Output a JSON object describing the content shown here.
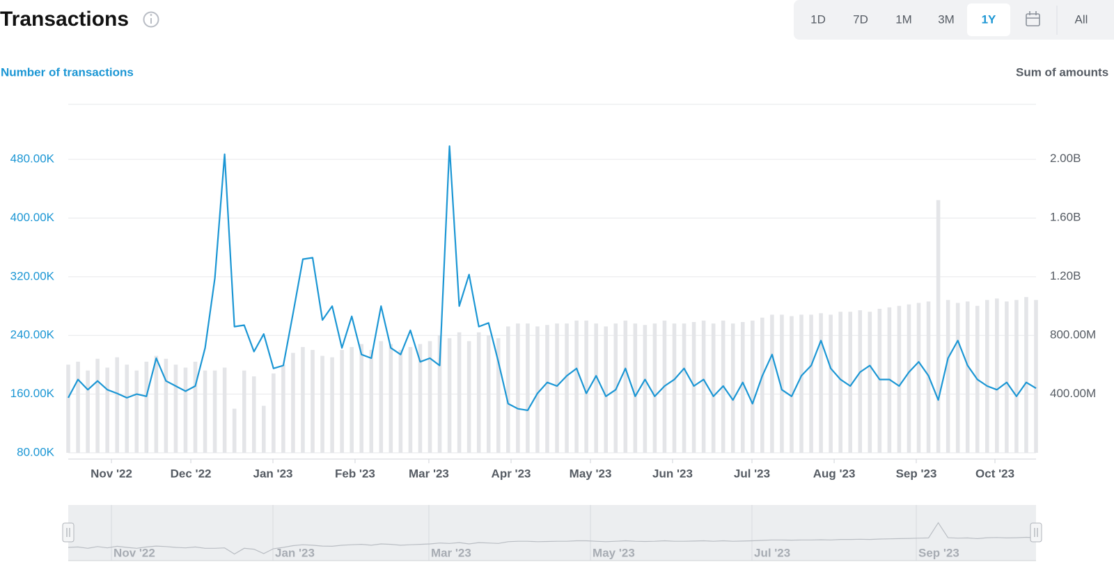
{
  "chart_data": {
    "type": "line",
    "title": "Transactions",
    "y_axis_label": "Number of transactions",
    "y2_axis_label": "Sum of amounts",
    "controls": {
      "ranges": [
        "1D",
        "7D",
        "1M",
        "3M",
        "1Y",
        "All"
      ],
      "selected": 4
    },
    "xlim": [
      0,
      99
    ],
    "xticks": [
      {
        "value": 4.42,
        "label": "Nov '22"
      },
      {
        "value": 12.54,
        "label": "Dec '22"
      },
      {
        "value": 20.94,
        "label": "Jan '23"
      },
      {
        "value": 29.34,
        "label": "Feb '23"
      },
      {
        "value": 36.89,
        "label": "Mar '23"
      },
      {
        "value": 45.3,
        "label": "Apr '23"
      },
      {
        "value": 53.42,
        "label": "May '23"
      },
      {
        "value": 61.82,
        "label": "Jun '23"
      },
      {
        "value": 69.94,
        "label": "Jul '23"
      },
      {
        "value": 78.35,
        "label": "Aug '23"
      },
      {
        "value": 86.75,
        "label": "Sep '23"
      },
      {
        "value": 94.8,
        "label": "Oct '23"
      }
    ],
    "navigator_ticks": [
      {
        "value": 4.42,
        "label": "Nov '22"
      },
      {
        "value": 20.94,
        "label": "Jan '23"
      },
      {
        "value": 36.89,
        "label": "Mar '23"
      },
      {
        "value": 53.42,
        "label": "May '23"
      },
      {
        "value": 69.94,
        "label": "Jul '23"
      },
      {
        "value": 86.75,
        "label": "Sep '23"
      }
    ],
    "ylim": [
      71500,
      555000
    ],
    "yticks": [
      {
        "value": 80000,
        "label": "80.00K"
      },
      {
        "value": 160000,
        "label": "160.00K"
      },
      {
        "value": 240000,
        "label": "240.00K"
      },
      {
        "value": 320000,
        "label": "320.00K"
      },
      {
        "value": 400000,
        "label": "400.00K"
      },
      {
        "value": 480000,
        "label": "480.00K"
      }
    ],
    "y2lim": [
      -42600000,
      2371600000
    ],
    "y2ticks": [
      {
        "value": 400000000,
        "label": "400.00M"
      },
      {
        "value": 800000000,
        "label": "800.00M"
      },
      {
        "value": 1200000000,
        "label": "1.20B"
      },
      {
        "value": 1600000000,
        "label": "1.60B"
      },
      {
        "value": 2000000000,
        "label": "2.00B"
      }
    ],
    "grid": true,
    "series": [
      {
        "type": "bar",
        "axis": "y2",
        "color": "#e4e5e8",
        "values": [
          600000000.0,
          620000000.0,
          560000000.0,
          640000000.0,
          580000000.0,
          650000000.0,
          600000000.0,
          560000000.0,
          620000000.0,
          660000000.0,
          640000000.0,
          600000000.0,
          580000000.0,
          620000000.0,
          560000000.0,
          560000000.0,
          580000000.0,
          300000000.0,
          560000000.0,
          520000000.0,
          320000000.0,
          540000000.0,
          600000000.0,
          680000000.0,
          720000000.0,
          700000000.0,
          660000000.0,
          650000000.0,
          700000000.0,
          720000000.0,
          740000000.0,
          700000000.0,
          760000000.0,
          740000000.0,
          700000000.0,
          720000000.0,
          740000000.0,
          760000000.0,
          800000000.0,
          780000000.0,
          820000000.0,
          760000000.0,
          820000000.0,
          800000000.0,
          780000000.0,
          860000000.0,
          880000000.0,
          880000000.0,
          860000000.0,
          870000000.0,
          880000000.0,
          880000000.0,
          900000000.0,
          900000000.0,
          880000000.0,
          860000000.0,
          880000000.0,
          900000000.0,
          880000000.0,
          870000000.0,
          880000000.0,
          900000000.0,
          880000000.0,
          880000000.0,
          890000000.0,
          900000000.0,
          880000000.0,
          900000000.0,
          880000000.0,
          890000000.0,
          900000000.0,
          920000000.0,
          940000000.0,
          940000000.0,
          930000000.0,
          940000000.0,
          940000000.0,
          950000000.0,
          940000000.0,
          960000000.0,
          960000000.0,
          970000000.0,
          960000000.0,
          980000000.0,
          990000000.0,
          1000000000.0,
          1010000000.0,
          1020000000.0,
          1030000000.0,
          1720000000.0,
          1040000000.0,
          1020000000.0,
          1030000000.0,
          1000000000.0,
          1040000000.0,
          1050000000.0,
          1030000000.0,
          1040000000.0,
          1060000000.0,
          1040000000.0
        ]
      },
      {
        "type": "line",
        "color": "#1b96d4",
        "values": [
          155000,
          180000,
          166000,
          178000,
          166000,
          161000,
          155000,
          160000,
          157000,
          209000,
          178000,
          171000,
          164000,
          171000,
          223000,
          318000,
          487000,
          252000,
          254000,
          218000,
          242000,
          195000,
          199000,
          270000,
          344000,
          346000,
          261000,
          280000,
          223000,
          266000,
          214000,
          209000,
          280000,
          223000,
          214000,
          247000,
          204000,
          209000,
          199000,
          498000,
          280000,
          323000,
          252000,
          257000,
          204000,
          147000,
          140000,
          138000,
          161000,
          176000,
          171000,
          185000,
          195000,
          161000,
          185000,
          157000,
          166000,
          195000,
          157000,
          180000,
          157000,
          171000,
          180000,
          195000,
          171000,
          180000,
          157000,
          171000,
          152000,
          176000,
          147000,
          185000,
          214000,
          166000,
          157000,
          185000,
          199000,
          233000,
          195000,
          180000,
          171000,
          190000,
          199000,
          180000,
          180000,
          171000,
          190000,
          204000,
          185000,
          152000,
          209000,
          233000,
          199000,
          180000,
          171000,
          166000,
          176000,
          157000,
          176000,
          168000
        ]
      }
    ]
  }
}
